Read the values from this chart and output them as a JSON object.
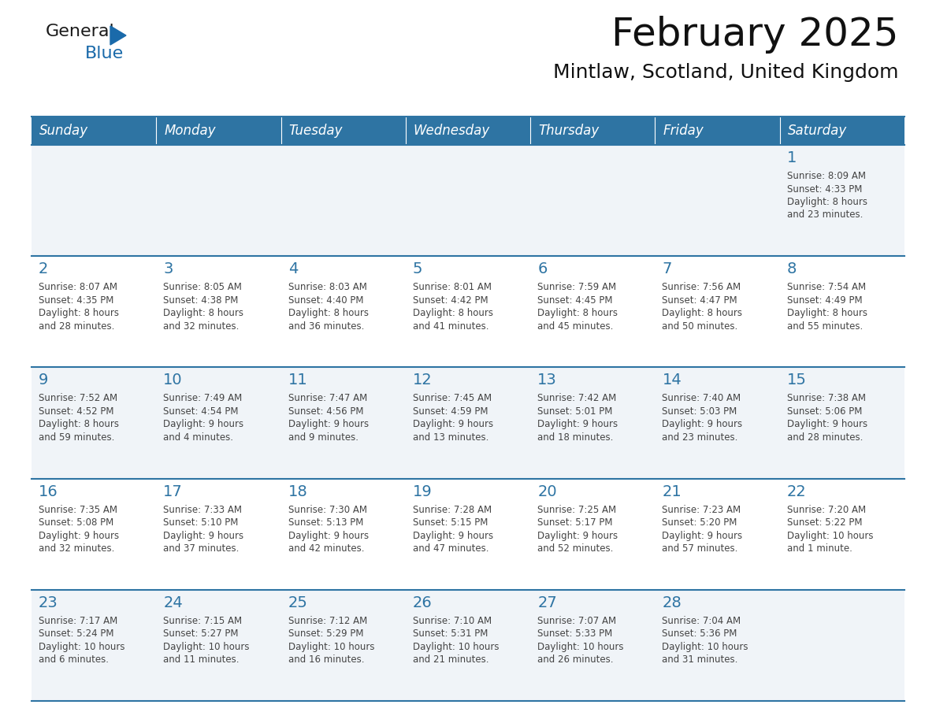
{
  "title": "February 2025",
  "subtitle": "Mintlaw, Scotland, United Kingdom",
  "days_of_week": [
    "Sunday",
    "Monday",
    "Tuesday",
    "Wednesday",
    "Thursday",
    "Friday",
    "Saturday"
  ],
  "header_bg": "#2e74a3",
  "header_text": "#ffffff",
  "row_bg_even": "#f0f4f8",
  "row_bg_odd": "#ffffff",
  "cell_border": "#2e74a3",
  "day_num_color": "#2e74a3",
  "info_text_color": "#444444",
  "weeks": [
    [
      {
        "day": null
      },
      {
        "day": null
      },
      {
        "day": null
      },
      {
        "day": null
      },
      {
        "day": null
      },
      {
        "day": null
      },
      {
        "day": 1,
        "sunrise": "8:09 AM",
        "sunset": "4:33 PM",
        "daylight_line1": "Daylight: 8 hours",
        "daylight_line2": "and 23 minutes."
      }
    ],
    [
      {
        "day": 2,
        "sunrise": "8:07 AM",
        "sunset": "4:35 PM",
        "daylight_line1": "Daylight: 8 hours",
        "daylight_line2": "and 28 minutes."
      },
      {
        "day": 3,
        "sunrise": "8:05 AM",
        "sunset": "4:38 PM",
        "daylight_line1": "Daylight: 8 hours",
        "daylight_line2": "and 32 minutes."
      },
      {
        "day": 4,
        "sunrise": "8:03 AM",
        "sunset": "4:40 PM",
        "daylight_line1": "Daylight: 8 hours",
        "daylight_line2": "and 36 minutes."
      },
      {
        "day": 5,
        "sunrise": "8:01 AM",
        "sunset": "4:42 PM",
        "daylight_line1": "Daylight: 8 hours",
        "daylight_line2": "and 41 minutes."
      },
      {
        "day": 6,
        "sunrise": "7:59 AM",
        "sunset": "4:45 PM",
        "daylight_line1": "Daylight: 8 hours",
        "daylight_line2": "and 45 minutes."
      },
      {
        "day": 7,
        "sunrise": "7:56 AM",
        "sunset": "4:47 PM",
        "daylight_line1": "Daylight: 8 hours",
        "daylight_line2": "and 50 minutes."
      },
      {
        "day": 8,
        "sunrise": "7:54 AM",
        "sunset": "4:49 PM",
        "daylight_line1": "Daylight: 8 hours",
        "daylight_line2": "and 55 minutes."
      }
    ],
    [
      {
        "day": 9,
        "sunrise": "7:52 AM",
        "sunset": "4:52 PM",
        "daylight_line1": "Daylight: 8 hours",
        "daylight_line2": "and 59 minutes."
      },
      {
        "day": 10,
        "sunrise": "7:49 AM",
        "sunset": "4:54 PM",
        "daylight_line1": "Daylight: 9 hours",
        "daylight_line2": "and 4 minutes."
      },
      {
        "day": 11,
        "sunrise": "7:47 AM",
        "sunset": "4:56 PM",
        "daylight_line1": "Daylight: 9 hours",
        "daylight_line2": "and 9 minutes."
      },
      {
        "day": 12,
        "sunrise": "7:45 AM",
        "sunset": "4:59 PM",
        "daylight_line1": "Daylight: 9 hours",
        "daylight_line2": "and 13 minutes."
      },
      {
        "day": 13,
        "sunrise": "7:42 AM",
        "sunset": "5:01 PM",
        "daylight_line1": "Daylight: 9 hours",
        "daylight_line2": "and 18 minutes."
      },
      {
        "day": 14,
        "sunrise": "7:40 AM",
        "sunset": "5:03 PM",
        "daylight_line1": "Daylight: 9 hours",
        "daylight_line2": "and 23 minutes."
      },
      {
        "day": 15,
        "sunrise": "7:38 AM",
        "sunset": "5:06 PM",
        "daylight_line1": "Daylight: 9 hours",
        "daylight_line2": "and 28 minutes."
      }
    ],
    [
      {
        "day": 16,
        "sunrise": "7:35 AM",
        "sunset": "5:08 PM",
        "daylight_line1": "Daylight: 9 hours",
        "daylight_line2": "and 32 minutes."
      },
      {
        "day": 17,
        "sunrise": "7:33 AM",
        "sunset": "5:10 PM",
        "daylight_line1": "Daylight: 9 hours",
        "daylight_line2": "and 37 minutes."
      },
      {
        "day": 18,
        "sunrise": "7:30 AM",
        "sunset": "5:13 PM",
        "daylight_line1": "Daylight: 9 hours",
        "daylight_line2": "and 42 minutes."
      },
      {
        "day": 19,
        "sunrise": "7:28 AM",
        "sunset": "5:15 PM",
        "daylight_line1": "Daylight: 9 hours",
        "daylight_line2": "and 47 minutes."
      },
      {
        "day": 20,
        "sunrise": "7:25 AM",
        "sunset": "5:17 PM",
        "daylight_line1": "Daylight: 9 hours",
        "daylight_line2": "and 52 minutes."
      },
      {
        "day": 21,
        "sunrise": "7:23 AM",
        "sunset": "5:20 PM",
        "daylight_line1": "Daylight: 9 hours",
        "daylight_line2": "and 57 minutes."
      },
      {
        "day": 22,
        "sunrise": "7:20 AM",
        "sunset": "5:22 PM",
        "daylight_line1": "Daylight: 10 hours",
        "daylight_line2": "and 1 minute."
      }
    ],
    [
      {
        "day": 23,
        "sunrise": "7:17 AM",
        "sunset": "5:24 PM",
        "daylight_line1": "Daylight: 10 hours",
        "daylight_line2": "and 6 minutes."
      },
      {
        "day": 24,
        "sunrise": "7:15 AM",
        "sunset": "5:27 PM",
        "daylight_line1": "Daylight: 10 hours",
        "daylight_line2": "and 11 minutes."
      },
      {
        "day": 25,
        "sunrise": "7:12 AM",
        "sunset": "5:29 PM",
        "daylight_line1": "Daylight: 10 hours",
        "daylight_line2": "and 16 minutes."
      },
      {
        "day": 26,
        "sunrise": "7:10 AM",
        "sunset": "5:31 PM",
        "daylight_line1": "Daylight: 10 hours",
        "daylight_line2": "and 21 minutes."
      },
      {
        "day": 27,
        "sunrise": "7:07 AM",
        "sunset": "5:33 PM",
        "daylight_line1": "Daylight: 10 hours",
        "daylight_line2": "and 26 minutes."
      },
      {
        "day": 28,
        "sunrise": "7:04 AM",
        "sunset": "5:36 PM",
        "daylight_line1": "Daylight: 10 hours",
        "daylight_line2": "and 31 minutes."
      },
      {
        "day": null
      }
    ]
  ],
  "logo_color_general": "#1a1a1a",
  "logo_color_blue": "#1a6aaa",
  "logo_triangle_color": "#1a6aaa"
}
